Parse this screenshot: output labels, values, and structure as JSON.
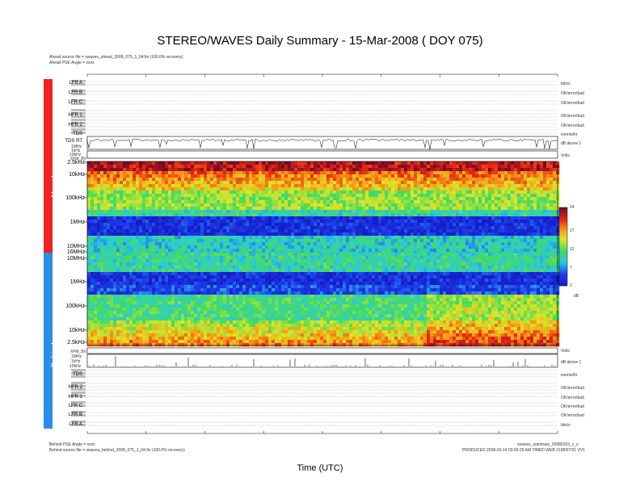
{
  "header": {
    "title": "STEREO/WAVES Daily Summary - 15-Mar-2008 ( DOY 075)",
    "ahead_source": "Ahead source file = swaves_ahead_2008_075_1_04.fin (100.0% recovery)",
    "ahead_pse": "Ahead PSE Angle = xxxx"
  },
  "footer": {
    "behind_pse": "Behind PSE Angle = xxxx",
    "behind_source": "Behind source file = swaves_behind_2008_075_1_04.fin (100.0% recovery)",
    "file_id": "swaves_summary_20080315_c_s",
    "produced": "PRODUCED 2008-03-14 03:00:29 AM TIMED WEB 2108/07/21 VV1"
  },
  "side_labels": {
    "ahead": "Ahead",
    "behind": "Behind"
  },
  "ahead_panels": [
    {
      "label": "LFR A",
      "right": "bits/s"
    },
    {
      "label": "LFR B",
      "right": "OK/error/bad"
    },
    {
      "label": "LFR C",
      "right": "OK/error/bad"
    },
    {
      "label": "HFR 1",
      "right": "OK/error/bad"
    },
    {
      "label": "HFR 2",
      "right": "OK/error/bad"
    },
    {
      "label": "TDS",
      "right": "events/hr"
    }
  ],
  "behind_panels": [
    {
      "label": "TDS",
      "right": "events/hr"
    },
    {
      "label": "HFR 2",
      "right": "OK/error/bad"
    },
    {
      "label": "HFR 1",
      "right": "OK/error/bad"
    },
    {
      "label": "LFR C",
      "right": "OK/error/bad"
    },
    {
      "label": "LFR B",
      "right": "OK/error/bad"
    },
    {
      "label": "LFR A",
      "right": "bits/s"
    }
  ],
  "tds_rate_labels": {
    "ahead": "TDS RT",
    "ahead_freqs": [
      "1MHz",
      "1kHz",
      "10kHz"
    ],
    "behind_freqs": [
      "1MHz",
      "1kHz",
      "10kHz"
    ],
    "ahead_unit": "dB above 1",
    "behind_unit": "dB above 1"
  },
  "xfmr": {
    "ahead": "XFM_BV",
    "behind": "XFM_BV",
    "unit": "Volts"
  },
  "chart_data": {
    "type": "heatmap",
    "xlabel": "Time (UTC)",
    "ahead_freq_ticks": [
      "2.5kHz",
      "10kHz",
      "100kHz",
      "1MHz",
      "10MHz"
    ],
    "behind_freq_ticks": [
      "10MHz",
      "1MHz",
      "100kHz",
      "10kHz",
      "2.5kHz"
    ],
    "middle_ticks": [
      "10MHz",
      "16MHz"
    ],
    "colorbar": {
      "ticks": [
        "24",
        "17",
        "12",
        "7",
        "2"
      ],
      "unit": "dB",
      "min": 2,
      "max": 24
    }
  }
}
